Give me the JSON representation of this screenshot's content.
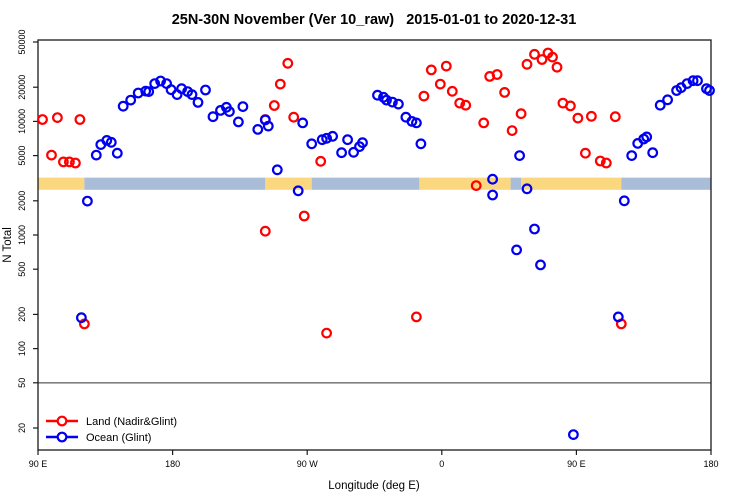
{
  "chart_data": {
    "type": "scatter",
    "title": "25N-30N November (Ver 10_raw)   2015-01-01 to 2020-12-31",
    "xlabel": "Longitude (deg E)",
    "ylabel": "N Total",
    "x_axis": {
      "range_deg_east_continuous": [
        90,
        540
      ],
      "ticks": [
        {
          "lon": 90,
          "label": "90 E"
        },
        {
          "lon": 180,
          "label": "180"
        },
        {
          "lon": 270,
          "label": "90 W"
        },
        {
          "lon": 360,
          "label": "0"
        },
        {
          "lon": 450,
          "label": "90 E"
        },
        {
          "lon": 540,
          "label": "180"
        }
      ]
    },
    "y_axis": {
      "scale": "log",
      "range": [
        13,
        52000
      ],
      "ticks": [
        {
          "value": 50000,
          "label": "50000"
        },
        {
          "value": 20000,
          "label": "20000"
        },
        {
          "value": 10000,
          "label": "10000"
        },
        {
          "value": 5000,
          "label": "5000"
        },
        {
          "value": 2000,
          "label": "2000"
        },
        {
          "value": 1000,
          "label": "1000"
        },
        {
          "value": 500,
          "label": "500"
        },
        {
          "value": 200,
          "label": "200"
        },
        {
          "value": 100,
          "label": "100"
        },
        {
          "value": 50,
          "label": "50"
        },
        {
          "value": 20,
          "label": "20"
        }
      ]
    },
    "reference_line": {
      "value": 50,
      "color": "#808080"
    },
    "land_ocean_band": {
      "value_range": [
        2500,
        3200
      ],
      "colors": {
        "land": "#fbd77f",
        "ocean": "#a9bdd9"
      },
      "segments": [
        {
          "from": 90,
          "to": 121,
          "type": "land"
        },
        {
          "from": 121,
          "to": 242,
          "type": "ocean"
        },
        {
          "from": 242,
          "to": 273,
          "type": "land"
        },
        {
          "from": 273,
          "to": 345,
          "type": "ocean"
        },
        {
          "from": 345,
          "to": 406,
          "type": "land"
        },
        {
          "from": 406,
          "to": 413,
          "type": "ocean"
        },
        {
          "from": 413,
          "to": 480,
          "type": "land"
        },
        {
          "from": 480,
          "to": 540,
          "type": "ocean"
        }
      ]
    },
    "legend": [
      {
        "label": "Land (Nadir&Glint)",
        "color": "#ff0000"
      },
      {
        "label": "Ocean (Glint)",
        "color": "#0000f0"
      }
    ],
    "series": [
      {
        "name": "Land (Nadir&Glint)",
        "color": "#ff0000",
        "points": [
          [
            93,
            10400
          ],
          [
            103,
            10800
          ],
          [
            118,
            10400
          ],
          [
            99,
            5050
          ],
          [
            107,
            4400
          ],
          [
            111,
            4400
          ],
          [
            115,
            4300
          ],
          [
            121,
            165
          ],
          [
            242,
            1080
          ],
          [
            257,
            32500
          ],
          [
            252,
            21300
          ],
          [
            248,
            13800
          ],
          [
            242,
            10400
          ],
          [
            261,
            10900
          ],
          [
            279,
            4450
          ],
          [
            268,
            1470
          ],
          [
            283,
            137
          ],
          [
            353,
            28400
          ],
          [
            363,
            30700
          ],
          [
            359,
            21300
          ],
          [
            348,
            16700
          ],
          [
            367,
            18400
          ],
          [
            372,
            14500
          ],
          [
            376,
            13900
          ],
          [
            392,
            24900
          ],
          [
            388,
            9700
          ],
          [
            383,
            2720
          ],
          [
            343,
            190
          ],
          [
            397,
            25900
          ],
          [
            417,
            31800
          ],
          [
            422,
            39000
          ],
          [
            427,
            35100
          ],
          [
            431,
            40000
          ],
          [
            434,
            36800
          ],
          [
            437,
            30000
          ],
          [
            402,
            18000
          ],
          [
            413,
            11700
          ],
          [
            407,
            8300
          ],
          [
            441,
            14500
          ],
          [
            446,
            13700
          ],
          [
            451,
            10700
          ],
          [
            460,
            11100
          ],
          [
            456,
            5250
          ],
          [
            466,
            4480
          ],
          [
            470,
            4300
          ],
          [
            476,
            11000
          ],
          [
            480,
            165
          ]
        ]
      },
      {
        "name": "Ocean (Glint)",
        "color": "#0000f0",
        "points": [
          [
            147,
            13600
          ],
          [
            152,
            15400
          ],
          [
            157,
            17800
          ],
          [
            162,
            18500
          ],
          [
            132,
            6250
          ],
          [
            136,
            6800
          ],
          [
            139,
            6550
          ],
          [
            129,
            5050
          ],
          [
            143,
            5250
          ],
          [
            123,
            1990
          ],
          [
            119,
            187
          ],
          [
            164,
            18300
          ],
          [
            168,
            21500
          ],
          [
            172,
            22700
          ],
          [
            176,
            21500
          ],
          [
            179,
            19000
          ],
          [
            183,
            17200
          ],
          [
            186,
            19400
          ],
          [
            190,
            18300
          ],
          [
            193,
            17200
          ],
          [
            197,
            14700
          ],
          [
            202,
            18900
          ],
          [
            207,
            11000
          ],
          [
            212,
            12500
          ],
          [
            216,
            13300
          ],
          [
            218,
            12200
          ],
          [
            224,
            9900
          ],
          [
            227,
            13500
          ],
          [
            237,
            8500
          ],
          [
            242,
            10300
          ],
          [
            244,
            9100
          ],
          [
            267,
            9700
          ],
          [
            273,
            6350
          ],
          [
            280,
            6900
          ],
          [
            283,
            7100
          ],
          [
            287,
            7400
          ],
          [
            293,
            5300
          ],
          [
            297,
            6900
          ],
          [
            301,
            5350
          ],
          [
            305,
            6000
          ],
          [
            307,
            6500
          ],
          [
            250,
            3750
          ],
          [
            264,
            2450
          ],
          [
            317,
            17000
          ],
          [
            321,
            16300
          ],
          [
            323,
            15400
          ],
          [
            327,
            14800
          ],
          [
            331,
            14200
          ],
          [
            336,
            10900
          ],
          [
            340,
            10000
          ],
          [
            343,
            9700
          ],
          [
            346,
            6350
          ],
          [
            394,
            3100
          ],
          [
            394,
            2250
          ],
          [
            412,
            5000
          ],
          [
            417,
            2550
          ],
          [
            422,
            1130
          ],
          [
            410,
            740
          ],
          [
            426,
            545
          ],
          [
            448,
            17.5
          ],
          [
            491,
            6400
          ],
          [
            495,
            7000
          ],
          [
            497,
            7300
          ],
          [
            501,
            5300
          ],
          [
            487,
            5000
          ],
          [
            482,
            2000
          ],
          [
            478,
            190
          ],
          [
            506,
            13900
          ],
          [
            511,
            15500
          ],
          [
            517,
            18700
          ],
          [
            520,
            19800
          ],
          [
            524,
            21500
          ],
          [
            528,
            22800
          ],
          [
            531,
            22800
          ],
          [
            537,
            19400
          ],
          [
            539,
            18700
          ]
        ]
      }
    ]
  }
}
